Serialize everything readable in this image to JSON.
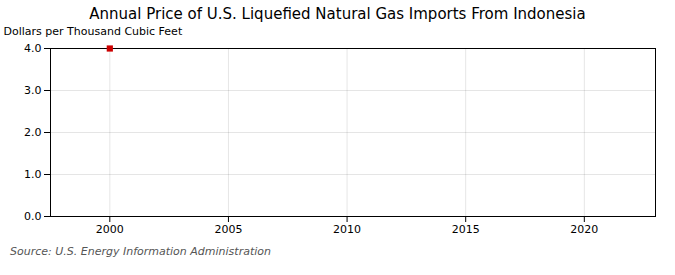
{
  "chart_data": {
    "type": "scatter",
    "title": "Annual Price of U.S. Liquefied Natural Gas Imports From Indonesia",
    "ylabel": "Dollars per Thousand Cubic Feet",
    "source": "Source: U.S. Energy Information Administration",
    "x": [
      2000
    ],
    "values": [
      4.0
    ],
    "color": "#cc0000",
    "marker": "square",
    "line_style": "none",
    "xlim": [
      1997.5,
      2023
    ],
    "ylim": [
      0.0,
      4.0
    ],
    "xticks": [
      2000,
      2005,
      2010,
      2015,
      2020
    ],
    "yticks": [
      {
        "value": 0.0,
        "label": "0.0"
      },
      {
        "value": 1.0,
        "label": "1.0"
      },
      {
        "value": 2.0,
        "label": "2.0"
      },
      {
        "value": 3.0,
        "label": "3.0"
      },
      {
        "value": 4.0,
        "label": "4.0"
      }
    ],
    "grid": true
  }
}
